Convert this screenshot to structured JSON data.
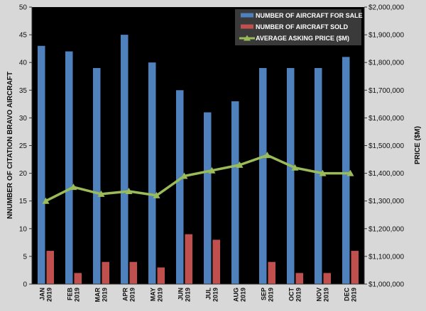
{
  "chart_data": {
    "type": "bar",
    "categories": [
      [
        "JAN",
        "2019"
      ],
      [
        "FEB",
        "2019"
      ],
      [
        "MAR",
        "2019"
      ],
      [
        "APR",
        "2019"
      ],
      [
        "MAY",
        "2019"
      ],
      [
        "JUN",
        "2019"
      ],
      [
        "JUL",
        "2019"
      ],
      [
        "AUG",
        "2019"
      ],
      [
        "SEP",
        "2019"
      ],
      [
        "OCT",
        "2019"
      ],
      [
        "NOV",
        "2019"
      ],
      [
        "DEC",
        "2019"
      ]
    ],
    "series": [
      {
        "name": "NUMBER OF AIRCRAFT FOR SALE",
        "type": "bar",
        "axis": "left",
        "color": "#4f81bd",
        "values": [
          43,
          42,
          39,
          45,
          40,
          35,
          31,
          33,
          39,
          39,
          39,
          41
        ]
      },
      {
        "name": "NUMBER OF AIRCRAFT SOLD",
        "type": "bar",
        "axis": "left",
        "color": "#c0504d",
        "values": [
          6,
          2,
          4,
          4,
          3,
          9,
          8,
          0,
          4,
          2,
          2,
          6
        ]
      },
      {
        "name": "AVERAGE ASKING PRICE ($M)",
        "type": "line",
        "axis": "right",
        "color": "#9bbb59",
        "values": [
          1300000,
          1350000,
          1325000,
          1335000,
          1320000,
          1390000,
          1410000,
          1430000,
          1465000,
          1420000,
          1400000,
          1400000
        ]
      }
    ],
    "ylabel_left": "NNUMBER OF CITATION BRAVO AIRCRAFT",
    "ylabel_right": "PRICE ($M)",
    "ylim_left": [
      0,
      50
    ],
    "ylim_right": [
      1000000,
      2000000
    ],
    "yticks_left": [
      "0",
      "5",
      "10",
      "15",
      "20",
      "25",
      "30",
      "35",
      "40",
      "45",
      "50"
    ],
    "yticks_right": [
      "$1,000,000",
      "$1,100,000",
      "$1,200,000",
      "$1,300,000",
      "$1,400,000",
      "$1,500,000",
      "$1,600,000",
      "$1,700,000",
      "$1,800,000",
      "$1,900,000",
      "$2,000,000"
    ],
    "plot_background": "#000000",
    "grid": false,
    "legend_position": "top-right"
  }
}
